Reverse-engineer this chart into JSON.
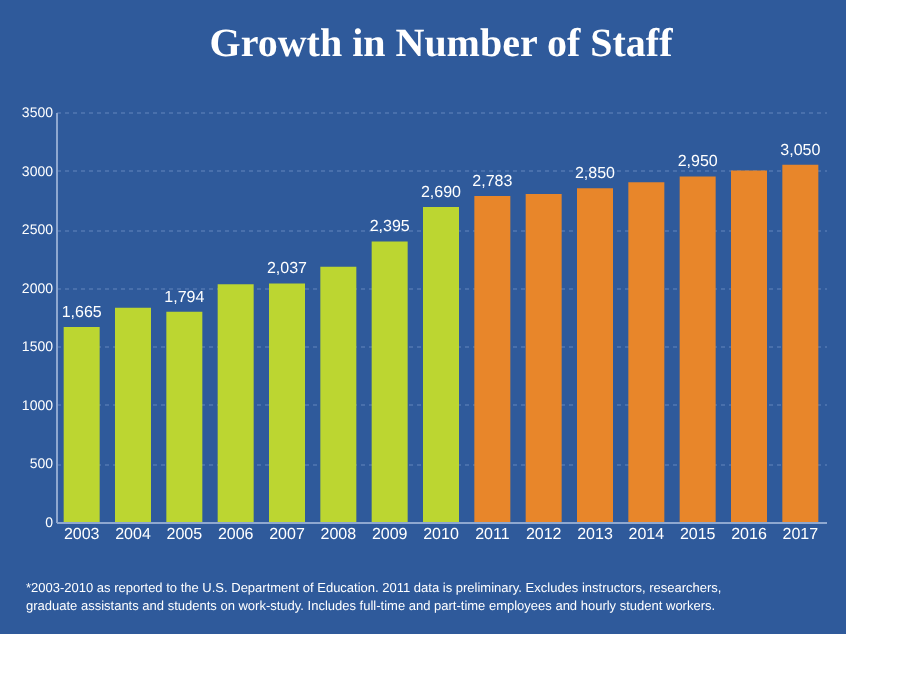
{
  "chart_data": {
    "type": "bar",
    "title": "Growth in Number of Staff",
    "categories": [
      "2003",
      "2004",
      "2005",
      "2006",
      "2007",
      "2008",
      "2009",
      "2010",
      "2011",
      "2012",
      "2013",
      "2014",
      "2015",
      "2016",
      "2017"
    ],
    "values": [
      1665,
      1830,
      1794,
      2030,
      2037,
      2180,
      2395,
      2690,
      2783,
      2800,
      2850,
      2900,
      2950,
      3000,
      3050
    ],
    "value_labels": [
      "1,665",
      null,
      "1,794",
      null,
      "2,037",
      null,
      "2,395",
      "2,690",
      "2,783",
      null,
      "2,850",
      null,
      "2,950",
      null,
      "3,050"
    ],
    "colors": [
      "#bcd631",
      "#bcd631",
      "#bcd631",
      "#bcd631",
      "#bcd631",
      "#bcd631",
      "#bcd631",
      "#bcd631",
      "#e8862a",
      "#e8862a",
      "#e8862a",
      "#e8862a",
      "#e8862a",
      "#e8862a",
      "#e8862a"
    ],
    "ylim": [
      0,
      3500
    ],
    "yticks": [
      0,
      500,
      1000,
      1500,
      2000,
      2500,
      3000,
      3500
    ],
    "grid": "y",
    "annotations": [
      "*2003-2010 as reported to the U.S. Department of Education. 2011 data is preliminary.  Excludes instructors, researchers, graduate assistants and students on work-study. Includes full-time and part-time employees and hourly student workers."
    ]
  }
}
